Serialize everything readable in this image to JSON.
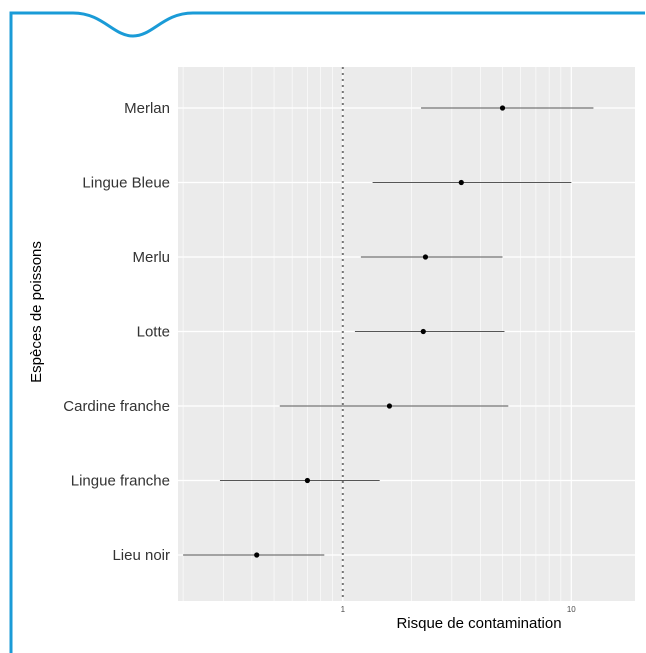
{
  "theme": {
    "frame_color": "#1a9bd7",
    "panel_bg": "#ebebeb",
    "grid_color": "#ffffff",
    "line_color": "#555555",
    "point_color": "#000000",
    "ref_line_color": "#777777"
  },
  "chart_data": {
    "type": "forest",
    "title": "",
    "xlabel": "Risque de contamination",
    "ylabel": "Espèces de poissons",
    "x_scale": "log10",
    "xlim": [
      0.19,
      19
    ],
    "x_ticks": [
      1,
      10
    ],
    "x_tick_labels": [
      "1",
      "10"
    ],
    "reference_line": 1,
    "grid": true,
    "categories": [
      "Merlan",
      "Lingue Bleue",
      "Merlu",
      "Lotte",
      "Cardine franche",
      "Lingue franche",
      "Lieu noir"
    ],
    "estimates": [
      5.0,
      3.3,
      2.3,
      2.25,
      1.6,
      0.7,
      0.42
    ],
    "lower": [
      2.2,
      1.35,
      1.2,
      1.13,
      0.53,
      0.29,
      0.2
    ],
    "upper": [
      12.5,
      10.0,
      5.0,
      5.1,
      5.3,
      1.45,
      0.83
    ]
  }
}
